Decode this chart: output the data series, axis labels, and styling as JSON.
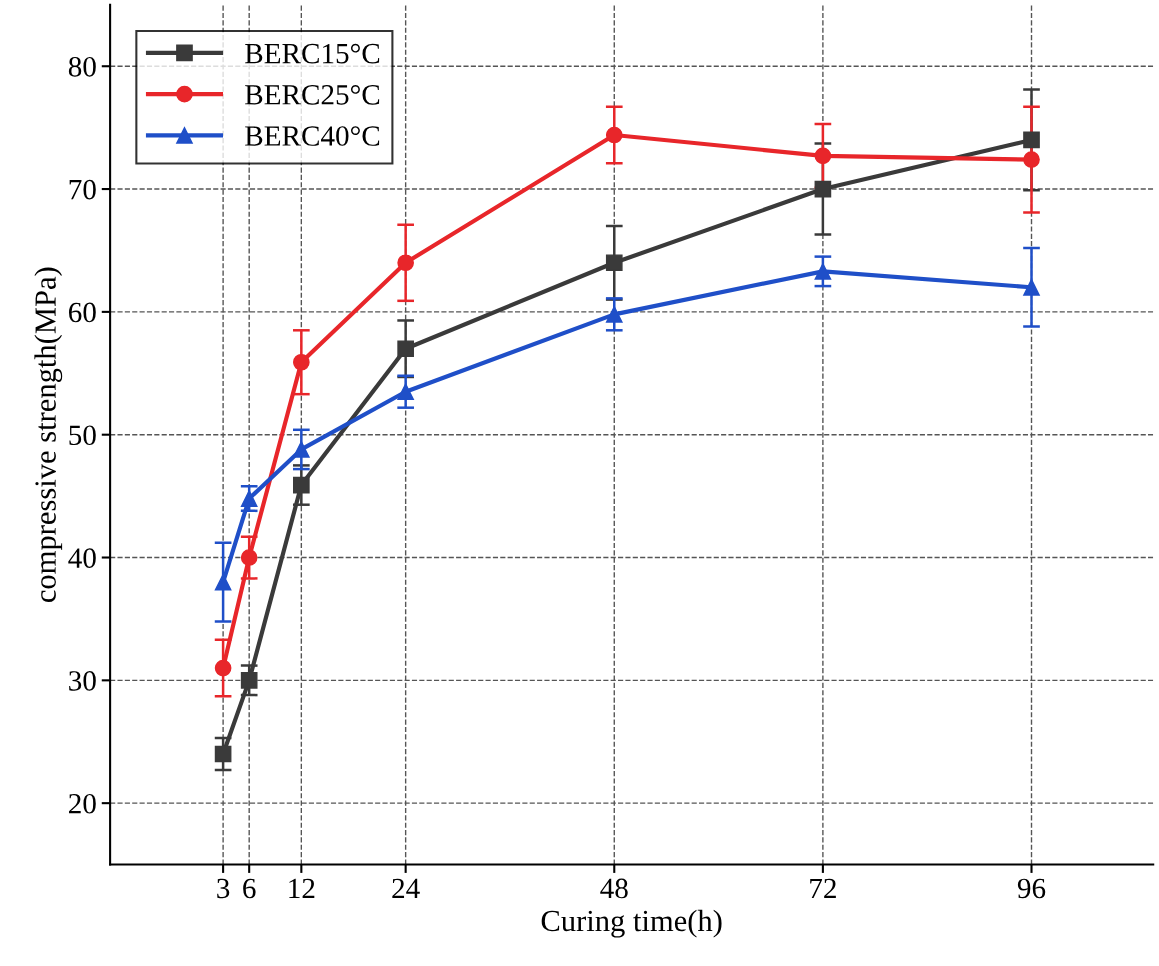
{
  "chart_data": {
    "type": "line",
    "xlabel": "Curing time(h)",
    "ylabel": "compressive strength(MPa)",
    "x": [
      3,
      6,
      12,
      24,
      48,
      72,
      96
    ],
    "series": [
      {
        "name": "BERC15°C",
        "color": "#3a3a3a",
        "marker": "square",
        "values": [
          24,
          30,
          45.9,
          57,
          64,
          70,
          74
        ],
        "errors": [
          1.3,
          1.2,
          1.6,
          2.3,
          3,
          3.7,
          4.1
        ]
      },
      {
        "name": "BERC25°C",
        "color": "#e8262a",
        "marker": "circle",
        "values": [
          31,
          40,
          55.9,
          64,
          74.4,
          72.7,
          72.4
        ],
        "errors": [
          2.3,
          1.7,
          2.6,
          3.1,
          2.3,
          2.6,
          4.3
        ]
      },
      {
        "name": "BERC40°C",
        "color": "#1f4fc8",
        "marker": "triangle",
        "values": [
          38,
          44.8,
          48.8,
          53.5,
          59.8,
          63.3,
          62
        ],
        "errors": [
          3.2,
          1,
          1.6,
          1.3,
          1.3,
          1.2,
          3.2
        ]
      }
    ],
    "xlim": [
      -10,
      110
    ],
    "xticks": [
      3,
      6,
      12,
      24,
      48,
      72,
      96
    ],
    "ylim": [
      15,
      85
    ],
    "yticks": [
      20,
      30,
      40,
      50,
      60,
      70,
      80
    ],
    "grid": true,
    "legend": "top left",
    "line_style": "solid"
  }
}
